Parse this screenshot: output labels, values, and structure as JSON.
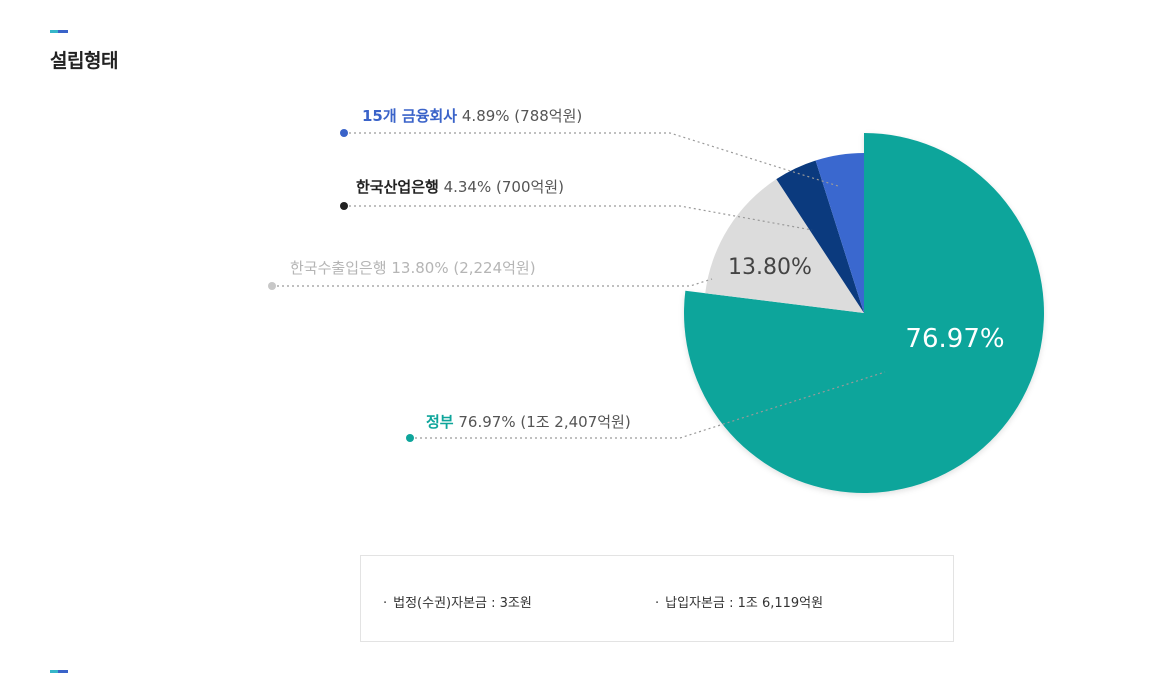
{
  "section": {
    "title": "설립형태"
  },
  "chart_data": {
    "type": "pie",
    "start_angle_deg": 0,
    "direction": "clockwise",
    "slices": [
      {
        "label": "정부",
        "value": 76.97,
        "percent_text": "76.97%",
        "amount": "(1조 2,407억원)",
        "inner_label": "76.97%",
        "color": "#0ea59b",
        "label_color": "#0ea59b",
        "label_bold": true
      },
      {
        "label": "한국수출입은행",
        "value": 13.8,
        "percent_text": "13.80%",
        "amount": "(2,224억원)",
        "inner_label": "13.80%",
        "color": "#dcdcdc",
        "label_color": "#b5b5b5",
        "label_bold": false
      },
      {
        "label": "한국산업은행",
        "value": 4.34,
        "percent_text": "4.34%",
        "amount": "(700억원)",
        "inner_label": "",
        "color": "#0b3a7e",
        "label_color": "#222222",
        "label_bold": true
      },
      {
        "label": "15개 금융회사",
        "value": 4.89,
        "percent_text": "4.89%",
        "amount": "(788억원)",
        "inner_label": "",
        "color": "#3a68cf",
        "label_color": "#3a63c9",
        "label_bold": true
      }
    ]
  },
  "info": {
    "bullet": "·",
    "legal_capital": "법정(수권)자본금 : 3조원",
    "paid_in_capital": "납입자본금 : 1조 6,119억원"
  }
}
